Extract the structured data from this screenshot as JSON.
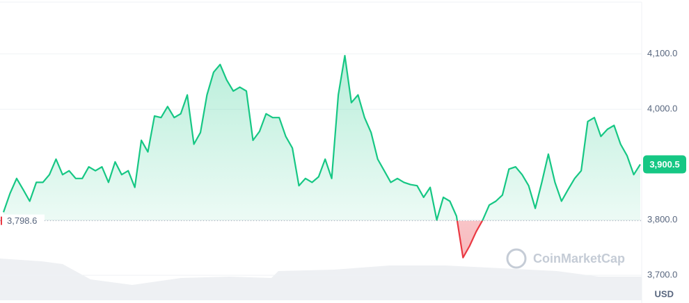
{
  "chart_data": {
    "type": "line",
    "values": [
      3814,
      3848,
      3875,
      3855,
      3834,
      3868,
      3868,
      3882,
      3910,
      3882,
      3889,
      3875,
      3875,
      3896,
      3889,
      3896,
      3868,
      3905,
      3882,
      3889,
      3859,
      3944,
      3923,
      3988,
      3985,
      4005,
      3985,
      3992,
      4026,
      3937,
      3958,
      4026,
      4067,
      4081,
      4053,
      4033,
      4040,
      4033,
      3944,
      3960,
      3992,
      3985,
      3985,
      3951,
      3930,
      3862,
      3875,
      3868,
      3878,
      3910,
      3875,
      4026,
      4097,
      4012,
      4026,
      3985,
      3958,
      3910,
      3889,
      3868,
      3875,
      3868,
      3864,
      3862,
      3841,
      3859,
      3800,
      3841,
      3834,
      3807,
      3732,
      3753,
      3779,
      3800,
      3827,
      3834,
      3845,
      3892,
      3896,
      3882,
      3862,
      3821,
      3868,
      3919,
      3868,
      3834,
      3855,
      3875,
      3889,
      3978,
      3985,
      3951,
      3964,
      3971,
      3937,
      3916,
      3882,
      3900.5
    ],
    "up_color": "#16c784",
    "down_color": "#ea3943",
    "baseline": {
      "value": 3798.6,
      "label": "3,798.6"
    },
    "current_price": {
      "value": 3900.5,
      "label": "3,900.5"
    },
    "ylim": [
      3650,
      4190
    ],
    "yticks": [
      {
        "value": 3700,
        "label": "3,700.0"
      },
      {
        "value": 3800,
        "label": "3,800.0"
      },
      {
        "value": 4000,
        "label": "4,000.0"
      },
      {
        "value": 4100,
        "label": "4,100.0"
      }
    ],
    "grid": true,
    "currency": "USD",
    "watermark": "CoinMarketCap"
  }
}
